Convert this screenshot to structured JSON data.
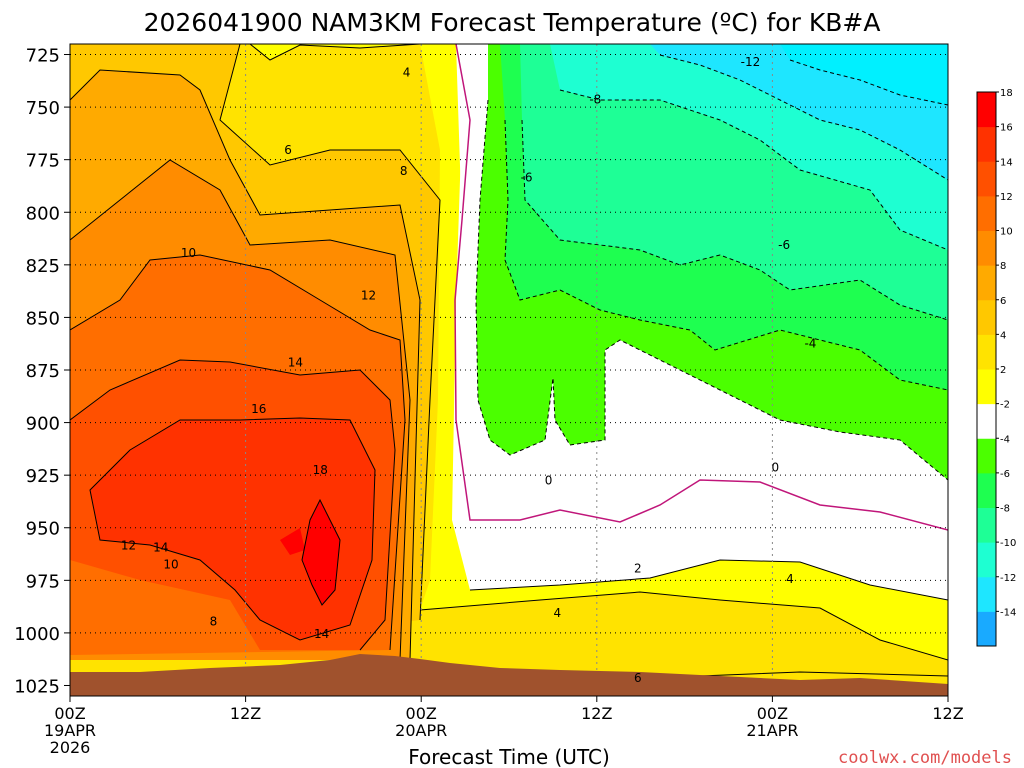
{
  "chart_data": {
    "type": "heatmap",
    "title": "2026041900 NAM3KM Forecast Temperature (ºC) for KB#A",
    "xlabel": "Forecast Time (UTC)",
    "ylabel": "",
    "credit": "coolwx.com/models",
    "x_range_hours": [
      0,
      60
    ],
    "y_range_hpa": [
      720,
      1030
    ],
    "y_ticks": [
      725,
      750,
      775,
      800,
      825,
      850,
      875,
      900,
      925,
      950,
      975,
      1000,
      1025
    ],
    "x_ticks": [
      {
        "hour": 0,
        "lines": [
          "00Z",
          "19APR",
          "2026"
        ]
      },
      {
        "hour": 12,
        "lines": [
          "12Z"
        ]
      },
      {
        "hour": 24,
        "lines": [
          "00Z",
          "20APR"
        ]
      },
      {
        "hour": 36,
        "lines": [
          "12Z"
        ]
      },
      {
        "hour": 48,
        "lines": [
          "00Z",
          "21APR"
        ]
      },
      {
        "hour": 60,
        "lines": [
          "12Z"
        ]
      }
    ],
    "grid": true,
    "colorbar": {
      "levels": [
        -16,
        -14,
        -12,
        -10,
        -8,
        -6,
        -4,
        -2,
        2,
        4,
        6,
        8,
        10,
        12,
        14,
        16,
        18,
        20
      ],
      "labels": [
        "-14",
        "-12",
        "-10",
        "-8",
        "-6",
        "-4",
        "-2",
        "2",
        "4",
        "6",
        "8",
        "10",
        "12",
        "14",
        "16",
        "18"
      ],
      "colors": [
        "#19aaff",
        "#1ee6ff",
        "#1effd2",
        "#1eff96",
        "#1eff50",
        "#4bff00",
        "#ffffff",
        "#ffff00",
        "#ffe300",
        "#ffc800",
        "#ffaa00",
        "#ff8c00",
        "#ff6e00",
        "#ff5000",
        "#ff3200",
        "#ff0000"
      ]
    },
    "contour_labels": [
      {
        "text": "4",
        "hour": 23.0,
        "p": 733
      },
      {
        "text": "6",
        "hour": 14.9,
        "p": 770
      },
      {
        "text": "8",
        "hour": 22.8,
        "p": 780
      },
      {
        "text": "10",
        "hour": 8.1,
        "p": 819
      },
      {
        "text": "12",
        "hour": 20.4,
        "p": 839
      },
      {
        "text": "14",
        "hour": 15.4,
        "p": 871
      },
      {
        "text": "16",
        "hour": 12.9,
        "p": 893
      },
      {
        "text": "18",
        "hour": 17.1,
        "p": 922
      },
      {
        "text": "12",
        "hour": 4.0,
        "p": 958
      },
      {
        "text": "14",
        "hour": 6.2,
        "p": 959
      },
      {
        "text": "10",
        "hour": 6.9,
        "p": 967
      },
      {
        "text": "8",
        "hour": 9.8,
        "p": 994
      },
      {
        "text": "14",
        "hour": 17.2,
        "p": 1000
      },
      {
        "text": "-12",
        "hour": 46.5,
        "p": 728
      },
      {
        "text": "-8",
        "hour": 35.9,
        "p": 746
      },
      {
        "text": "-6",
        "hour": 31.2,
        "p": 783
      },
      {
        "text": "-6",
        "hour": 48.8,
        "p": 815
      },
      {
        "text": "-4",
        "hour": 50.6,
        "p": 862
      },
      {
        "text": "0",
        "hour": 32.7,
        "p": 927
      },
      {
        "text": "0",
        "hour": 48.2,
        "p": 921
      },
      {
        "text": "2",
        "hour": 38.8,
        "p": 969
      },
      {
        "text": "4",
        "hour": 33.3,
        "p": 990
      },
      {
        "text": "4",
        "hour": 49.2,
        "p": 974
      },
      {
        "text": "6",
        "hour": 38.8,
        "p": 1021
      }
    ]
  }
}
